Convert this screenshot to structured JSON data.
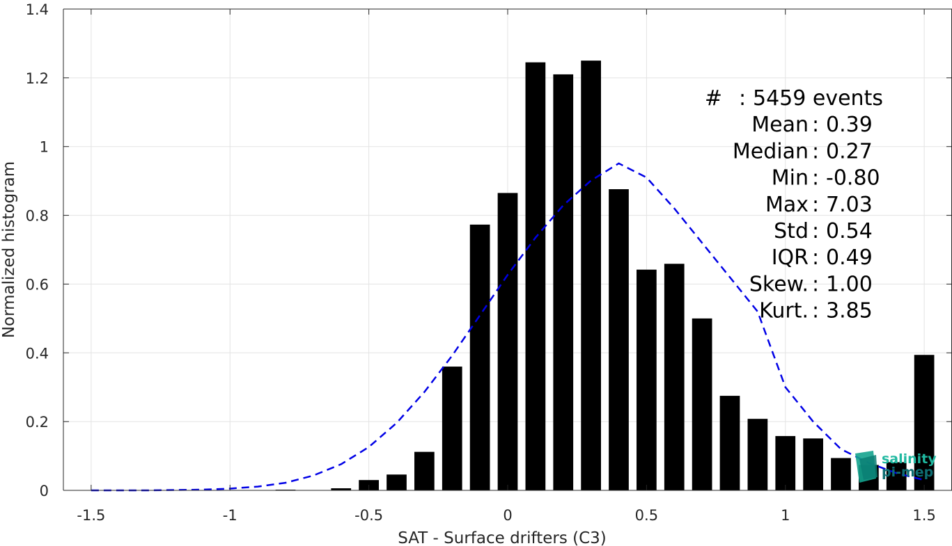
{
  "chart_data": {
    "type": "bar",
    "xlabel": "SAT - Surface drifters (C3)",
    "ylabel": "Normalized histogram",
    "xlim": [
      -1.6,
      1.6
    ],
    "ylim": [
      0,
      1.4
    ],
    "xticks": [
      -1.5,
      -1,
      -0.5,
      0,
      0.5,
      1,
      1.5
    ],
    "xtick_labels": [
      "-1.5",
      "-1",
      "-0.5",
      "0",
      "0.5",
      "1",
      "1.5"
    ],
    "yticks": [
      0,
      0.2,
      0.4,
      0.6,
      0.8,
      1,
      1.2,
      1.4
    ],
    "ytick_labels": [
      "0",
      "0.2",
      "0.4",
      "0.6",
      "0.8",
      "1",
      "1.2",
      "1.4"
    ],
    "grid": true,
    "bar_width": 0.072,
    "bar_color": "#000000",
    "bars": {
      "x": [
        -0.8,
        -0.6,
        -0.5,
        -0.4,
        -0.3,
        -0.2,
        -0.1,
        0.0,
        0.1,
        0.2,
        0.3,
        0.4,
        0.5,
        0.6,
        0.7,
        0.8,
        0.9,
        1.0,
        1.1,
        1.2,
        1.3,
        1.4,
        1.5
      ],
      "values": [
        0.002,
        0.006,
        0.03,
        0.046,
        0.112,
        0.36,
        0.773,
        0.865,
        1.245,
        1.21,
        1.25,
        0.876,
        0.642,
        0.659,
        0.5,
        0.275,
        0.208,
        0.158,
        0.151,
        0.094,
        0.074,
        0.082,
        0.394
      ]
    },
    "fit_curve": {
      "style": "dashed",
      "color": "#0000e6",
      "x": [
        -1.5,
        -1.4,
        -1.3,
        -1.2,
        -1.1,
        -1.0,
        -0.9,
        -0.8,
        -0.7,
        -0.6,
        -0.5,
        -0.4,
        -0.3,
        -0.2,
        -0.1,
        0.0,
        0.1,
        0.2,
        0.3,
        0.4,
        0.5,
        0.6,
        0.7,
        0.8,
        0.9,
        1.0,
        1.1,
        1.2,
        1.3,
        1.4,
        1.5
      ],
      "y": [
        0.0,
        0.0,
        0.0,
        0.001,
        0.002,
        0.005,
        0.011,
        0.022,
        0.043,
        0.076,
        0.126,
        0.196,
        0.286,
        0.392,
        0.509,
        0.627,
        0.735,
        0.829,
        0.901,
        0.951,
        0.91,
        0.82,
        0.72,
        0.62,
        0.52,
        0.3,
        0.2,
        0.12,
        0.08,
        0.05,
        0.03
      ]
    },
    "stats": [
      {
        "label": "#",
        "sep": ":",
        "value": "5459 events"
      },
      {
        "label": "Mean",
        "sep": ":",
        "value": "0.39"
      },
      {
        "label": "Median",
        "sep": ":",
        "value": "0.27"
      },
      {
        "label": "Min",
        "sep": ":",
        "value": "-0.80"
      },
      {
        "label": "Max",
        "sep": ":",
        "value": "7.03"
      },
      {
        "label": "Std",
        "sep": ":",
        "value": "0.54"
      },
      {
        "label": "IQR",
        "sep": ":",
        "value": "0.49"
      },
      {
        "label": "Skew.",
        "sep": ":",
        "value": "1.00"
      },
      {
        "label": "Kurt.",
        "sep": ":",
        "value": "3.85"
      }
    ]
  },
  "logo": {
    "line1": "salinity",
    "line2": "pi-mep",
    "color1": "#1fb8a0",
    "color2": "#0e6e73"
  }
}
